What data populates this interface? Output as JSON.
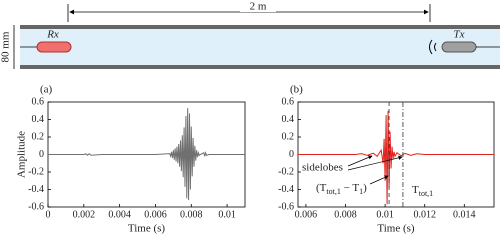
{
  "diagram": {
    "distance": "2 m",
    "diameter": "80 mm",
    "receiver": "Rx",
    "transmitter": "Tx"
  },
  "chart_data": [
    {
      "type": "line",
      "panel": "(a)",
      "ylabel": "Amplitude",
      "xlabel": "Time (s)",
      "color": "#707070",
      "x": [
        0,
        0.002,
        0.0021,
        0.0022,
        0.0023,
        0.0024,
        0.003,
        0.006,
        0.0068,
        0.00685,
        0.0069,
        0.00695,
        0.007,
        0.00705,
        0.0071,
        0.00715,
        0.0072,
        0.00725,
        0.0073,
        0.00735,
        0.0074,
        0.00745,
        0.0075,
        0.00755,
        0.0076,
        0.00765,
        0.0077,
        0.00775,
        0.0078,
        0.00785,
        0.0079,
        0.00795,
        0.008,
        0.00805,
        0.0081,
        0.00815,
        0.0082,
        0.00825,
        0.0083,
        0.00835,
        0.0084,
        0.00845,
        0.0085,
        0.0087,
        0.00875,
        0.0088,
        0.00885,
        0.009,
        0.011
      ],
      "values": [
        0,
        0,
        0.008,
        -0.008,
        0.008,
        -0.008,
        0,
        0,
        0.01,
        -0.02,
        0.03,
        -0.04,
        0.05,
        -0.06,
        0.07,
        -0.08,
        0.09,
        -0.1,
        0.12,
        -0.14,
        0.16,
        -0.19,
        0.22,
        -0.26,
        0.31,
        -0.37,
        0.44,
        -0.5,
        0.53,
        -0.52,
        0.47,
        -0.4,
        0.32,
        -0.25,
        0.19,
        -0.14,
        0.1,
        -0.07,
        0.05,
        -0.03,
        0.02,
        -0.01,
        0,
        0.02,
        -0.02,
        0.02,
        -0.01,
        0,
        0
      ],
      "xlim": [
        0,
        0.011
      ],
      "ylim": [
        -0.6,
        0.6
      ],
      "xticks": [
        0,
        0.002,
        0.004,
        0.006,
        0.008,
        0.01
      ],
      "yticks": [
        -0.6,
        -0.4,
        -0.2,
        0,
        0.2,
        0.4,
        0.6
      ]
    },
    {
      "type": "line",
      "panel": "(b)",
      "xlabel": "Time (s)",
      "color": "#e0201b",
      "x": [
        0.0056,
        0.0085,
        0.0088,
        0.0091,
        0.0094,
        0.0096,
        0.0098,
        0.0099,
        0.00995,
        0.01,
        0.01005,
        0.0101,
        0.01015,
        0.0102,
        0.01025,
        0.0103,
        0.01035,
        0.0104,
        0.01045,
        0.0105,
        0.0106,
        0.0108,
        0.011,
        0.0113,
        0.0116,
        0.012,
        0.0155
      ],
      "values": [
        0,
        0,
        0.01,
        -0.01,
        0.015,
        -0.02,
        0.05,
        -0.1,
        0.18,
        -0.3,
        0.45,
        -0.57,
        0.5,
        -0.38,
        0.26,
        -0.16,
        0.09,
        -0.05,
        0.03,
        -0.02,
        0.02,
        -0.015,
        0.012,
        -0.01,
        0.008,
        0,
        0
      ],
      "xlim": [
        0.0056,
        0.0155
      ],
      "ylim": [
        -0.6,
        0.6
      ],
      "xticks": [
        0.006,
        0.008,
        0.01,
        0.012,
        0.014
      ],
      "yticks": [
        -0.6,
        -0.4,
        -0.2,
        0,
        0.2,
        0.4,
        0.6
      ],
      "markers": [
        0.0102,
        0.0109
      ],
      "annotations": {
        "sidelobes": "sidelobes",
        "difference": [
          "(T",
          "tot,1",
          " − T",
          "1",
          ")"
        ],
        "total": [
          "T",
          "tot,1"
        ]
      }
    }
  ]
}
